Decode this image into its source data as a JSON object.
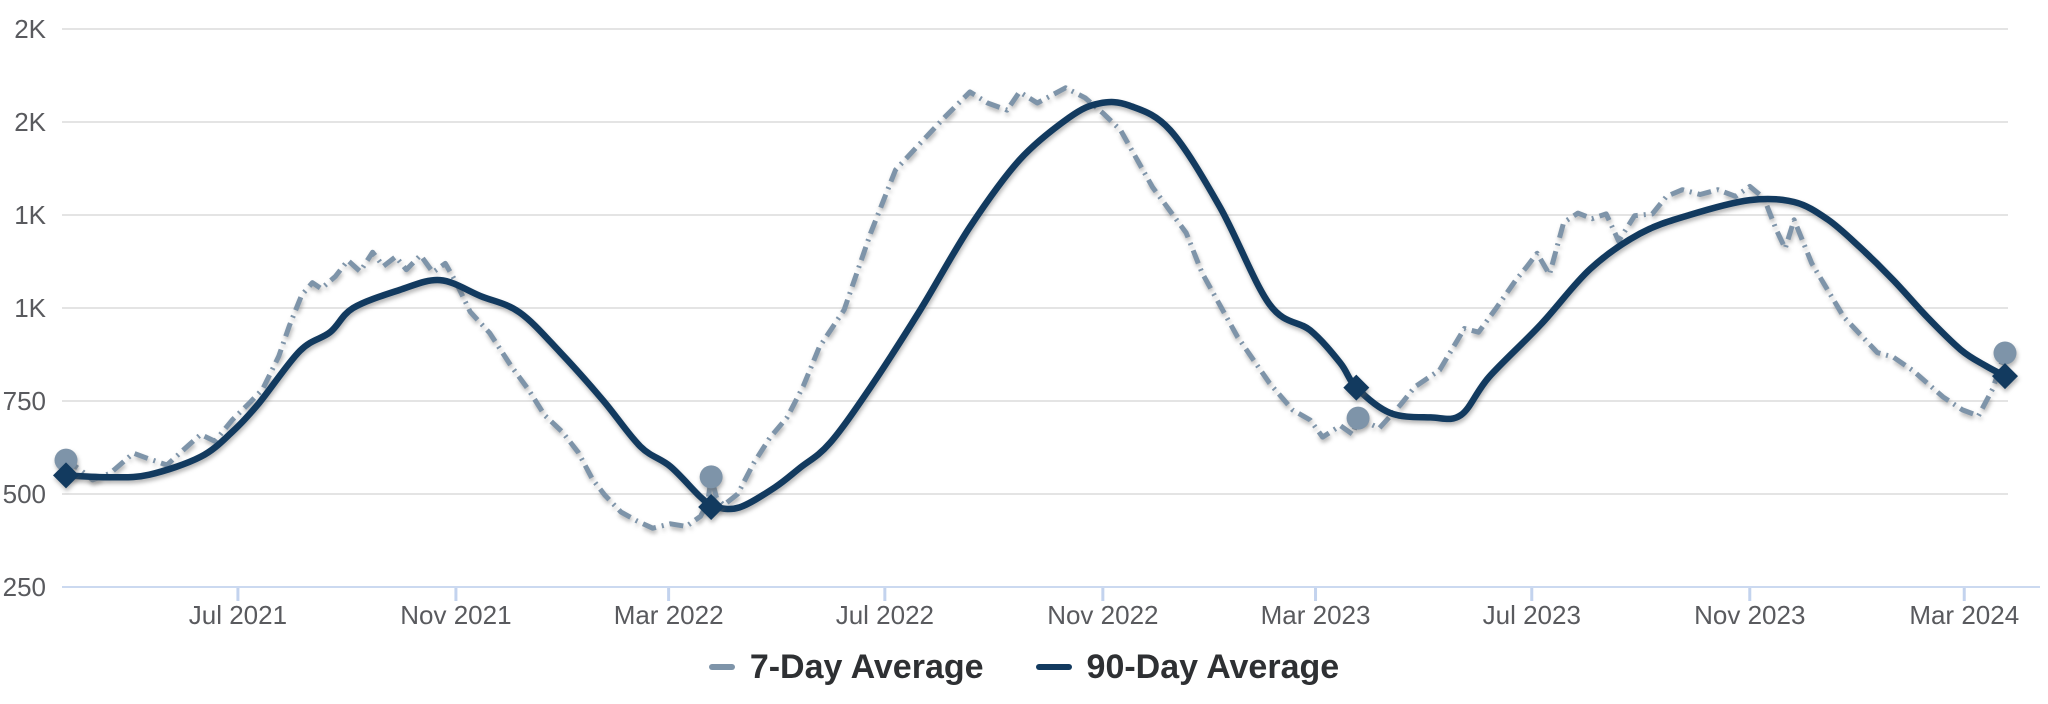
{
  "chart_data": {
    "type": "line",
    "title": "",
    "xlabel": "",
    "ylabel": "",
    "grid": "on",
    "legend_position": "bottom-center",
    "x_axis": {
      "start_date": "2021-03-26",
      "end_date": "2024-03-24",
      "domain_days": 1094,
      "ticks": [
        {
          "day": 97,
          "label": "Jul 2021"
        },
        {
          "day": 220,
          "label": "Nov 2021"
        },
        {
          "day": 340,
          "label": "Mar 2022"
        },
        {
          "day": 462,
          "label": "Jul 2022"
        },
        {
          "day": 585,
          "label": "Nov 2022"
        },
        {
          "day": 705,
          "label": "Mar 2023"
        },
        {
          "day": 827,
          "label": "Jul 2023"
        },
        {
          "day": 950,
          "label": "Nov 2023"
        },
        {
          "day": 1071,
          "label": "Mar 2024"
        }
      ]
    },
    "y_axis": {
      "min": 250,
      "max": 1750,
      "gridlines": [
        {
          "value": 250,
          "label": "250",
          "baseline": true
        },
        {
          "value": 500,
          "label": "500"
        },
        {
          "value": 750,
          "label": "750"
        },
        {
          "value": 1000,
          "label": "1K"
        },
        {
          "value": 1250,
          "label": "1K"
        },
        {
          "value": 1500,
          "label": "2K"
        },
        {
          "value": 1750,
          "label": "2K"
        }
      ]
    },
    "series": [
      {
        "name": "7-Day Average",
        "color": "#7E94A9",
        "line_style": "dash-dot",
        "stroke_width": 5,
        "dash_array": "14 6 2 6",
        "marker": "circle",
        "points": [
          [
            0,
            591
          ],
          [
            8,
            565
          ],
          [
            15,
            538
          ],
          [
            25,
            556
          ],
          [
            38,
            610
          ],
          [
            47,
            594
          ],
          [
            57,
            578
          ],
          [
            67,
            622
          ],
          [
            76,
            660
          ],
          [
            84,
            642
          ],
          [
            94,
            700
          ],
          [
            104,
            747
          ],
          [
            111,
            782
          ],
          [
            120,
            870
          ],
          [
            126,
            952
          ],
          [
            133,
            1035
          ],
          [
            139,
            1068
          ],
          [
            144,
            1052
          ],
          [
            152,
            1085
          ],
          [
            159,
            1128
          ],
          [
            166,
            1098
          ],
          [
            173,
            1150
          ],
          [
            179,
            1112
          ],
          [
            186,
            1138
          ],
          [
            192,
            1103
          ],
          [
            200,
            1142
          ],
          [
            207,
            1096
          ],
          [
            214,
            1120
          ],
          [
            220,
            1070
          ],
          [
            228,
            990
          ],
          [
            239,
            933
          ],
          [
            251,
            845
          ],
          [
            261,
            780
          ],
          [
            270,
            712
          ],
          [
            280,
            667
          ],
          [
            289,
            612
          ],
          [
            297,
            540
          ],
          [
            304,
            497
          ],
          [
            313,
            452
          ],
          [
            322,
            428
          ],
          [
            331,
            408
          ],
          [
            341,
            420
          ],
          [
            350,
            413
          ],
          [
            358,
            440
          ],
          [
            362,
            475
          ],
          [
            364,
            546
          ],
          [
            367,
            490
          ],
          [
            371,
            470
          ],
          [
            379,
            500
          ],
          [
            388,
            583
          ],
          [
            397,
            650
          ],
          [
            407,
            707
          ],
          [
            416,
            790
          ],
          [
            425,
            895
          ],
          [
            439,
            995
          ],
          [
            454,
            1202
          ],
          [
            468,
            1371
          ],
          [
            482,
            1443
          ],
          [
            496,
            1514
          ],
          [
            510,
            1581
          ],
          [
            520,
            1551
          ],
          [
            531,
            1532
          ],
          [
            538,
            1581
          ],
          [
            548,
            1551
          ],
          [
            564,
            1592
          ],
          [
            575,
            1565
          ],
          [
            585,
            1524
          ],
          [
            595,
            1478
          ],
          [
            613,
            1325
          ],
          [
            632,
            1202
          ],
          [
            641,
            1094
          ],
          [
            661,
            922
          ],
          [
            679,
            798
          ],
          [
            692,
            726
          ],
          [
            702,
            699
          ],
          [
            709,
            653
          ],
          [
            719,
            684
          ],
          [
            726,
            660
          ],
          [
            729,
            704
          ],
          [
            741,
            677
          ],
          [
            753,
            740
          ],
          [
            761,
            788
          ],
          [
            775,
            833
          ],
          [
            789,
            945
          ],
          [
            797,
            935
          ],
          [
            807,
            1000
          ],
          [
            818,
            1075
          ],
          [
            824,
            1110
          ],
          [
            830,
            1147
          ],
          [
            837,
            1090
          ],
          [
            845,
            1230
          ],
          [
            853,
            1255
          ],
          [
            861,
            1240
          ],
          [
            869,
            1253
          ],
          [
            876,
            1180
          ],
          [
            885,
            1248
          ],
          [
            895,
            1253
          ],
          [
            903,
            1300
          ],
          [
            912,
            1318
          ],
          [
            922,
            1305
          ],
          [
            932,
            1318
          ],
          [
            942,
            1300
          ],
          [
            950,
            1327
          ],
          [
            958,
            1295
          ],
          [
            965,
            1210
          ],
          [
            970,
            1160
          ],
          [
            975,
            1237
          ],
          [
            985,
            1120
          ],
          [
            1003,
            976
          ],
          [
            1022,
            880
          ],
          [
            1031,
            868
          ],
          [
            1042,
            832
          ],
          [
            1059,
            761
          ],
          [
            1070,
            726
          ],
          [
            1079,
            710
          ],
          [
            1087,
            782
          ],
          [
            1094,
            879
          ]
        ],
        "markers": [
          [
            0,
            591
          ],
          [
            364,
            546
          ],
          [
            729,
            704
          ],
          [
            1094,
            879
          ]
        ]
      },
      {
        "name": "90-Day Average",
        "color": "#123A5F",
        "line_style": "solid",
        "stroke_width": 6.5,
        "dash_array": "",
        "marker": "diamond",
        "points": [
          [
            0,
            550
          ],
          [
            25,
            545
          ],
          [
            47,
            552
          ],
          [
            76,
            600
          ],
          [
            94,
            668
          ],
          [
            109,
            745
          ],
          [
            132,
            885
          ],
          [
            149,
            935
          ],
          [
            162,
            1000
          ],
          [
            188,
            1048
          ],
          [
            211,
            1075
          ],
          [
            234,
            1032
          ],
          [
            256,
            988
          ],
          [
            279,
            880
          ],
          [
            303,
            752
          ],
          [
            324,
            628
          ],
          [
            341,
            574
          ],
          [
            358,
            492
          ],
          [
            366,
            466
          ],
          [
            380,
            464
          ],
          [
            400,
            518
          ],
          [
            414,
            570
          ],
          [
            431,
            637
          ],
          [
            454,
            788
          ],
          [
            482,
            995
          ],
          [
            510,
            1218
          ],
          [
            538,
            1398
          ],
          [
            566,
            1512
          ],
          [
            583,
            1550
          ],
          [
            600,
            1544
          ],
          [
            623,
            1478
          ],
          [
            651,
            1272
          ],
          [
            679,
            1010
          ],
          [
            702,
            940
          ],
          [
            719,
            852
          ],
          [
            728,
            786
          ],
          [
            747,
            718
          ],
          [
            770,
            706
          ],
          [
            787,
            712
          ],
          [
            803,
            815
          ],
          [
            832,
            955
          ],
          [
            860,
            1105
          ],
          [
            888,
            1200
          ],
          [
            916,
            1250
          ],
          [
            950,
            1290
          ],
          [
            975,
            1285
          ],
          [
            994,
            1238
          ],
          [
            1012,
            1164
          ],
          [
            1031,
            1075
          ],
          [
            1050,
            976
          ],
          [
            1069,
            888
          ],
          [
            1083,
            845
          ],
          [
            1094,
            817
          ]
        ],
        "markers": [
          [
            0,
            550
          ],
          [
            364,
            465
          ],
          [
            728,
            786
          ],
          [
            1094,
            817
          ]
        ]
      }
    ]
  },
  "colors": {
    "grid": "#E4E4E4",
    "baseline": "#CBD9F0",
    "tick": "#C3D3EE",
    "axis_label": "#595A5E",
    "legend_text": "#2E3033",
    "background": "#FFFFFF"
  },
  "legend": {
    "items": [
      {
        "label": "7-Day Average"
      },
      {
        "label": "90-Day Average"
      }
    ]
  }
}
